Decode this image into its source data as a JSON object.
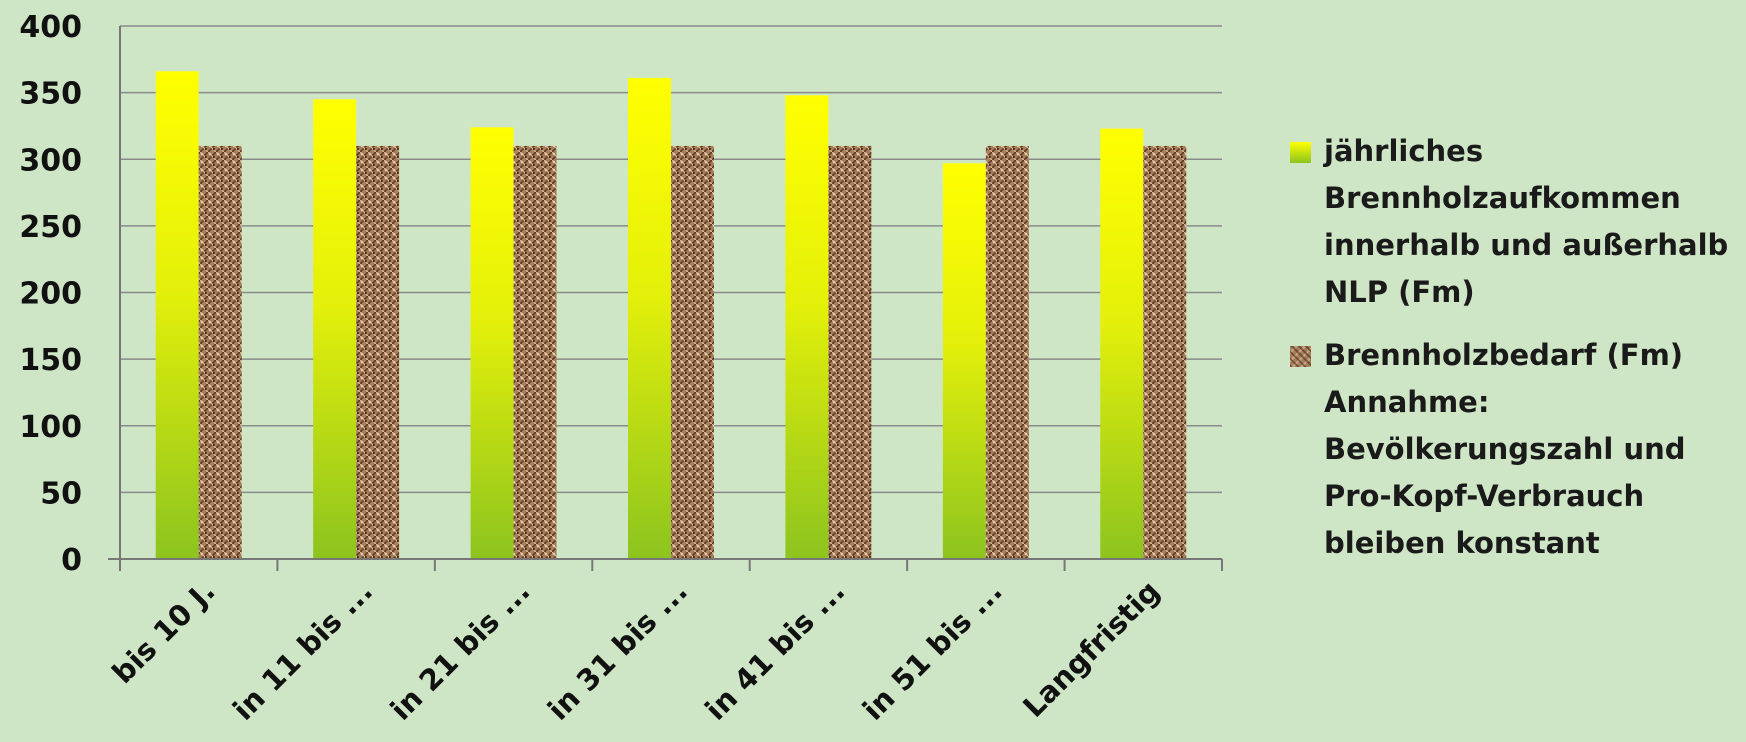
{
  "chart_data": {
    "type": "bar",
    "categories": [
      "bis 10 J.",
      "in 11 bis ...",
      "in 21 bis ...",
      "in 31 bis ...",
      "in 41 bis ...",
      "in 51 bis ...",
      "Langfristig"
    ],
    "series": [
      {
        "name": "jährliches Brennholzaufkommen innerhalb und außerhalb NLP (Fm)",
        "name_lines": [
          "jährliches",
          "Brennholzaufkommen",
          "innerhalb und außerhalb",
          "NLP (Fm)"
        ],
        "values": [
          366,
          345,
          324,
          361,
          348,
          297,
          323
        ],
        "color_top": "#ffff00",
        "color_bottom": "#8cc41f"
      },
      {
        "name": "Brennholzbedarf (Fm) Annahme: Bevölkerungszahl und Pro-Kopf-Verbrauch bleiben konstant",
        "name_lines": [
          "Brennholzbedarf (Fm)",
          "Annahme:",
          "Bevölkerungszahl und",
          "Pro-Kopf-Verbrauch",
          "bleiben konstant"
        ],
        "values": [
          310,
          310,
          310,
          310,
          310,
          310,
          310
        ],
        "color": "#a77f5c"
      }
    ],
    "ylim": [
      0,
      400
    ],
    "yticks": [
      "0",
      "50",
      "100",
      "150",
      "200",
      "250",
      "300",
      "350",
      "400"
    ],
    "grid": true,
    "legend_position": "right",
    "title": "",
    "xlabel": "",
    "ylabel": ""
  }
}
